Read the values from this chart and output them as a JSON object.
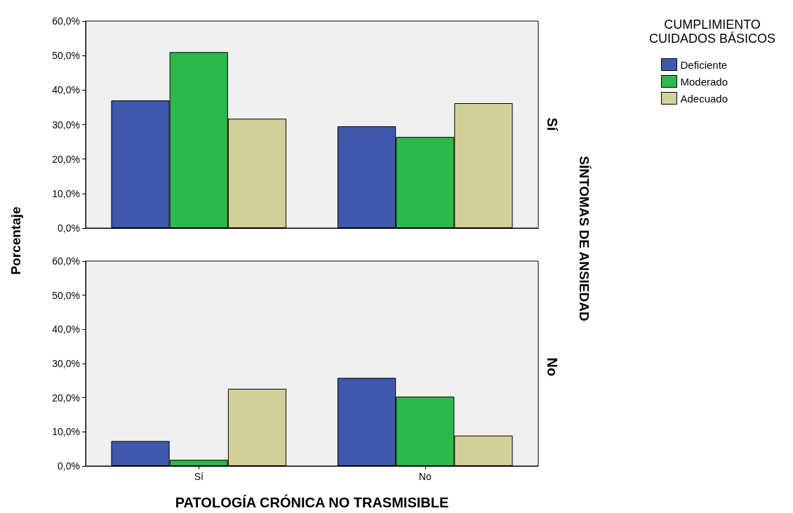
{
  "chart_data": [
    {
      "type": "bar",
      "categories": [
        null,
        null
      ],
      "ylabel": "Porcentaje",
      "y2label": "Sí",
      "annotations": [
        "SÍNTOMAS DE ANSIEDAD"
      ],
      "legend_title": "CUMPLIMIENTO\nCUIDADOS BÁSICOS",
      "legend": "top right",
      "grid": false,
      "tick_labels": "y",
      "ylim": [
        0,
        60
      ],
      "yticks": [
        {
          "value": 0,
          "label": "0,0%"
        },
        {
          "value": 10,
          "label": "10,0%"
        },
        {
          "value": 20,
          "label": "20,0%"
        },
        {
          "value": 30,
          "label": "30,0%"
        },
        {
          "value": 40,
          "label": "40,0%"
        },
        {
          "value": 50,
          "label": "50,0%"
        },
        {
          "value": 60,
          "label": "60,0%"
        }
      ],
      "series": [
        {
          "name": "Deficiente",
          "color": "#3e58ac",
          "values": [
            37.0,
            29.5
          ]
        },
        {
          "name": "Moderado",
          "color": "#2db84a",
          "values": [
            51.0,
            26.4
          ]
        },
        {
          "name": "Adecuado",
          "color": "#d4ce98",
          "values": [
            31.7,
            36.2
          ]
        }
      ]
    },
    {
      "type": "bar",
      "categories": [
        "Sí",
        "No"
      ],
      "xlabel": "PATOLOGÍA CRÓNICA NO TRASMISIBLE",
      "y2label": "No",
      "grid": false,
      "ylim": [
        0,
        60
      ],
      "yticks": [
        {
          "value": 0,
          "label": "0,0%"
        },
        {
          "value": 10,
          "label": "10,0%"
        },
        {
          "value": 20,
          "label": "20,0%"
        },
        {
          "value": 30,
          "label": "30,0%"
        },
        {
          "value": 40,
          "label": "40,0%"
        },
        {
          "value": 50,
          "label": "50,0%"
        },
        {
          "value": 60,
          "label": "60,0%"
        }
      ],
      "series": [
        {
          "color": "#3e58ac",
          "values": [
            7.3,
            25.8
          ]
        },
        {
          "color": "#2db84a",
          "values": [
            1.8,
            20.3
          ]
        },
        {
          "color": "#d4ce98",
          "values": [
            22.6,
            8.9
          ]
        }
      ]
    }
  ]
}
